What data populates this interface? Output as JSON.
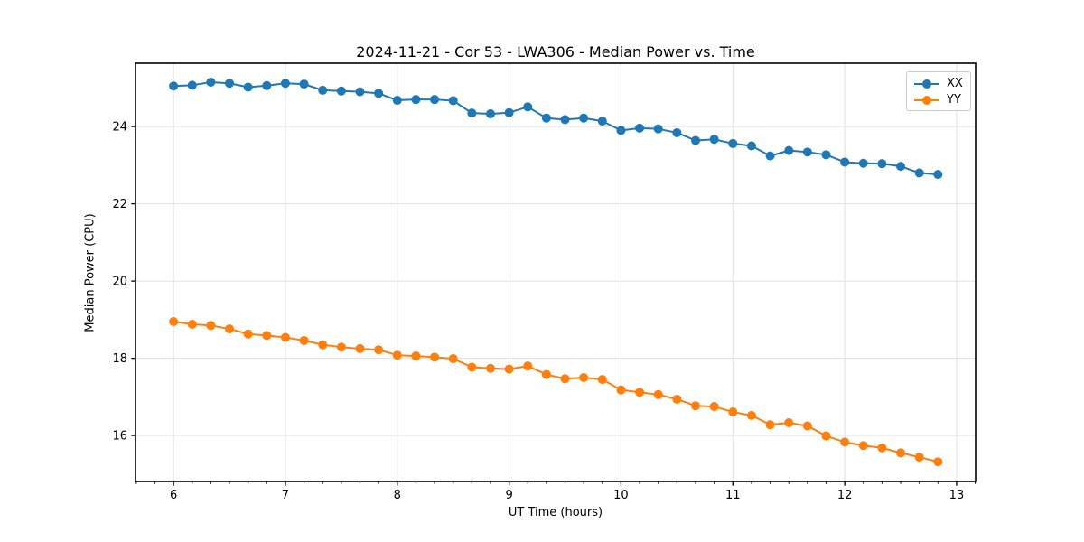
{
  "title": "2024-11-21 - Cor 53 - LWA306 - Median Power vs. Time",
  "colors": {
    "series_xx": "#1f77b4",
    "series_yy": "#ff7f0e",
    "grid": "#e0e0e0",
    "spine": "#000000",
    "background": "#ffffff"
  },
  "chart_data": {
    "type": "line",
    "title": "2024-11-21 - Cor 53 - LWA306 - Median Power vs. Time",
    "xlabel": "UT Time (hours)",
    "ylabel": "Median Power (CPU)",
    "xlim": [
      5.66,
      13.17
    ],
    "ylim": [
      14.81,
      25.64
    ],
    "xticks": [
      6,
      7,
      8,
      9,
      10,
      11,
      12,
      13
    ],
    "yticks": [
      16,
      18,
      20,
      22,
      24
    ],
    "x_minor_step": 0.166667,
    "grid": true,
    "legend_position": "upper right",
    "marker": "o",
    "x": [
      6,
      6.1667,
      6.3333,
      6.5,
      6.6667,
      6.8333,
      7,
      7.1667,
      7.3333,
      7.5,
      7.6667,
      7.8333,
      8,
      8.1667,
      8.3333,
      8.5,
      8.6667,
      8.8333,
      9,
      9.1667,
      9.3333,
      9.5,
      9.6667,
      9.8333,
      10,
      10.1667,
      10.3333,
      10.5,
      10.6667,
      10.8333,
      11,
      11.1667,
      11.3333,
      11.5,
      11.6667,
      11.8333,
      12,
      12.1667,
      12.3333,
      12.5,
      12.6667,
      12.8333
    ],
    "series": [
      {
        "name": "XX",
        "color": "#1f77b4",
        "values": [
          25.05,
          25.07,
          25.15,
          25.12,
          25.02,
          25.06,
          25.12,
          25.1,
          24.94,
          24.92,
          24.9,
          24.86,
          24.68,
          24.7,
          24.7,
          24.67,
          24.35,
          24.33,
          24.36,
          24.51,
          24.22,
          24.18,
          24.22,
          24.14,
          23.9,
          23.96,
          23.94,
          23.84,
          23.64,
          23.67,
          23.56,
          23.5,
          23.24,
          23.38,
          23.34,
          23.27,
          23.08,
          23.05,
          23.04,
          22.97,
          22.8,
          22.76
        ]
      },
      {
        "name": "YY",
        "color": "#ff7f0e",
        "values": [
          18.95,
          18.88,
          18.85,
          18.76,
          18.63,
          18.59,
          18.54,
          18.46,
          18.35,
          18.29,
          18.25,
          18.22,
          18.08,
          18.06,
          18.03,
          17.99,
          17.77,
          17.74,
          17.72,
          17.8,
          17.58,
          17.47,
          17.5,
          17.45,
          17.18,
          17.12,
          17.06,
          16.94,
          16.77,
          16.75,
          16.61,
          16.52,
          16.28,
          16.33,
          16.25,
          15.99,
          15.83,
          15.74,
          15.68,
          15.55,
          15.44,
          15.32
        ]
      }
    ]
  }
}
